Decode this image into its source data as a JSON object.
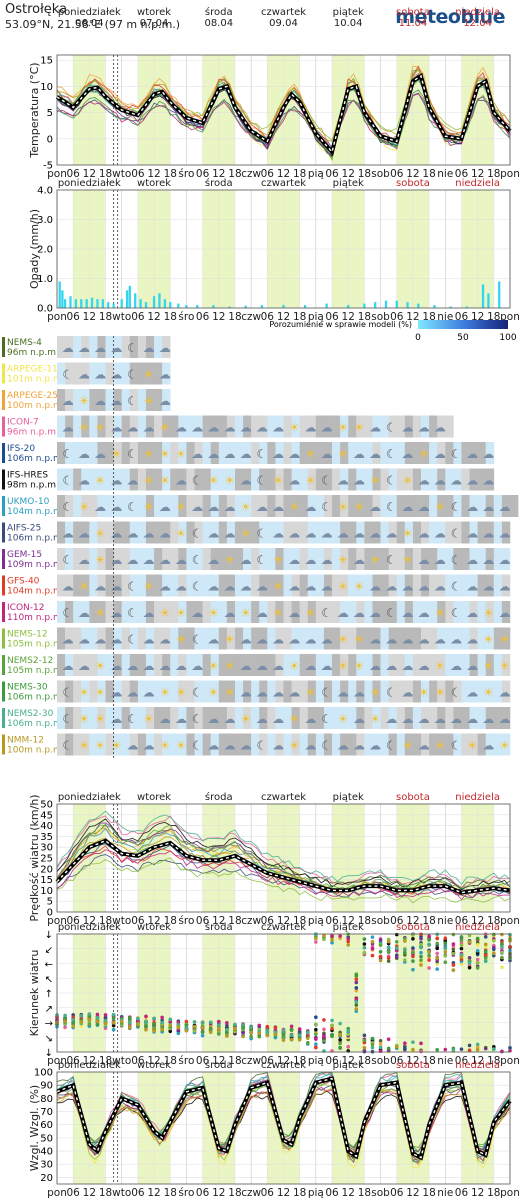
{
  "header": {
    "location": "Ostrołęka",
    "coordinates": "53.09°N, 21.58°E (97 m n.p.m.)",
    "brand": "meteoblue"
  },
  "colors": {
    "weekend": "#c0282d",
    "day_band": "#e9f5c2",
    "ensemble_mean": "#000000",
    "precip": "#33d6ee"
  },
  "days": [
    {
      "name": "poniedziałek",
      "date": "06.04",
      "weekend": false
    },
    {
      "name": "wtorek",
      "date": "07.04",
      "weekend": false
    },
    {
      "name": "środa",
      "date": "08.04",
      "weekend": false
    },
    {
      "name": "czwartek",
      "date": "09.04",
      "weekend": false
    },
    {
      "name": "piątek",
      "date": "10.04",
      "weekend": false
    },
    {
      "name": "sobota",
      "date": "11.04",
      "weekend": true
    },
    {
      "name": "niedziela",
      "date": "12.04",
      "weekend": true
    }
  ],
  "x_tick_labels": [
    "pon",
    "06",
    "12",
    "18",
    "wto",
    "06",
    "12",
    "18",
    "śro",
    "06",
    "12",
    "18",
    "czw",
    "06",
    "12",
    "18",
    "pią",
    "06",
    "12",
    "18",
    "sob",
    "06",
    "12",
    "18",
    "nie",
    "06",
    "12",
    "18",
    "pon"
  ],
  "agreement_legend": {
    "label": "Porozumienie w sprawie modeli (%)",
    "ticks": [
      "0",
      "50",
      "100"
    ]
  },
  "models": [
    {
      "name": "NEMS-4",
      "alt": "96m n.p.m",
      "color": "#4b6e23"
    },
    {
      "name": "ARPEGE-11",
      "alt": "101m n.p.m",
      "color": "#f2e54b"
    },
    {
      "name": "ARPEGE-25",
      "alt": "100m n.p.m",
      "color": "#f2a33a"
    },
    {
      "name": "ICON-7",
      "alt": "96m n.p.m",
      "color": "#e8609a"
    },
    {
      "name": "IFS-20",
      "alt": "106m n.p.m",
      "color": "#1f4c8c"
    },
    {
      "name": "IFS-HRES",
      "alt": "98m n.p.m",
      "color": "#111111"
    },
    {
      "name": "UKMO-10",
      "alt": "104m n.p.m",
      "color": "#2aa0c2"
    },
    {
      "name": "AIFS-25",
      "alt": "106m n.p.m",
      "color": "#3b4b7c"
    },
    {
      "name": "GEM-15",
      "alt": "109m n.p.m",
      "color": "#7b2f93"
    },
    {
      "name": "GFS-40",
      "alt": "104m n.p.m",
      "color": "#e03b24"
    },
    {
      "name": "ICON-12",
      "alt": "110m n.p.m",
      "color": "#c2237e"
    },
    {
      "name": "NEMS-12",
      "alt": "105m n.p.m",
      "color": "#8dbf3f"
    },
    {
      "name": "NEMS2-12",
      "alt": "105m n.p.m",
      "color": "#5aa33a"
    },
    {
      "name": "NEMS-30",
      "alt": "106m n.p.m",
      "color": "#3e9a3e"
    },
    {
      "name": "NEMS2-30",
      "alt": "106m n.p.m",
      "color": "#48b08e"
    },
    {
      "name": "NMM-12",
      "alt": "100m n.p.m",
      "color": "#b89a23"
    }
  ],
  "chart_data": [
    {
      "type": "line",
      "ylabel": "Temperatura (°C)",
      "ylim": [
        -5,
        16
      ],
      "yticks": [
        -5,
        0,
        5,
        10,
        15
      ],
      "x_hours": [
        0,
        6,
        12,
        15,
        18,
        24,
        30,
        36,
        39,
        42,
        48,
        54,
        60,
        63,
        66,
        72,
        78,
        84,
        87,
        90,
        96,
        102,
        108,
        111,
        114,
        120,
        126,
        132,
        135,
        138,
        144,
        150,
        156,
        159,
        162,
        168
      ],
      "series": [
        {
          "values": [
            8.0,
            6.0,
            9.5,
            9.8,
            8.0,
            5.5,
            4.5,
            8.5,
            9.0,
            7.0,
            4.0,
            3.0,
            9.5,
            10.0,
            6.0,
            1.5,
            -0.5,
            6.0,
            8.5,
            7.0,
            1.0,
            -2.5,
            9.5,
            10.0,
            5.0,
            0.5,
            -0.5,
            11.0,
            12.0,
            6.0,
            0.5,
            0.0,
            10.0,
            11.0,
            5.0,
            1.5
          ]
        }
      ]
    },
    {
      "type": "bar",
      "ylabel": "Opady (mm/h)",
      "ylim": [
        0,
        4
      ],
      "yticks": [
        "0.0",
        "1.0",
        "2.0",
        "3.0",
        "4.0"
      ],
      "bars": [
        {
          "h": 1,
          "v": 0.9
        },
        {
          "h": 2,
          "v": 0.6
        },
        {
          "h": 3,
          "v": 0.3
        },
        {
          "h": 5,
          "v": 0.4
        },
        {
          "h": 7,
          "v": 0.3
        },
        {
          "h": 9,
          "v": 0.3
        },
        {
          "h": 11,
          "v": 0.3
        },
        {
          "h": 13,
          "v": 0.35
        },
        {
          "h": 15,
          "v": 0.3
        },
        {
          "h": 17,
          "v": 0.3
        },
        {
          "h": 19,
          "v": 0.2
        },
        {
          "h": 21,
          "v": 0.15
        },
        {
          "h": 24,
          "v": 0.3
        },
        {
          "h": 26,
          "v": 0.6
        },
        {
          "h": 27,
          "v": 0.75
        },
        {
          "h": 29,
          "v": 0.5
        },
        {
          "h": 31,
          "v": 0.3
        },
        {
          "h": 33,
          "v": 0.2
        },
        {
          "h": 36,
          "v": 0.4
        },
        {
          "h": 38,
          "v": 0.5
        },
        {
          "h": 40,
          "v": 0.3
        },
        {
          "h": 42,
          "v": 0.2
        },
        {
          "h": 45,
          "v": 0.15
        },
        {
          "h": 48,
          "v": 0.1
        },
        {
          "h": 52,
          "v": 0.1
        },
        {
          "h": 58,
          "v": 0.1
        },
        {
          "h": 64,
          "v": 0.05
        },
        {
          "h": 70,
          "v": 0.08
        },
        {
          "h": 76,
          "v": 0.1
        },
        {
          "h": 84,
          "v": 0.1
        },
        {
          "h": 92,
          "v": 0.1
        },
        {
          "h": 100,
          "v": 0.15
        },
        {
          "h": 108,
          "v": 0.1
        },
        {
          "h": 114,
          "v": 0.15
        },
        {
          "h": 118,
          "v": 0.2
        },
        {
          "h": 122,
          "v": 0.25
        },
        {
          "h": 126,
          "v": 0.25
        },
        {
          "h": 130,
          "v": 0.2
        },
        {
          "h": 134,
          "v": 0.15
        },
        {
          "h": 140,
          "v": 0.1
        },
        {
          "h": 146,
          "v": 0.05
        },
        {
          "h": 152,
          "v": 0.05
        },
        {
          "h": 158,
          "v": 0.8
        },
        {
          "h": 160,
          "v": 0.5
        },
        {
          "h": 164,
          "v": 0.9
        }
      ]
    },
    {
      "type": "line",
      "ylabel": "Prędkość wiatru (km/h)",
      "ylim": [
        0,
        50
      ],
      "yticks": [
        0,
        5,
        10,
        15,
        20,
        25,
        30,
        35,
        40,
        45,
        50
      ],
      "x_hours": [
        0,
        6,
        12,
        18,
        24,
        30,
        36,
        42,
        48,
        54,
        60,
        66,
        72,
        78,
        84,
        90,
        96,
        102,
        108,
        114,
        120,
        126,
        132,
        138,
        144,
        150,
        156,
        162,
        168
      ],
      "series": [
        {
          "values": [
            14,
            22,
            30,
            33,
            27,
            26,
            30,
            32,
            26,
            24,
            24,
            26,
            22,
            18,
            16,
            14,
            12,
            10,
            10,
            12,
            12,
            10,
            10,
            12,
            12,
            9,
            10,
            11,
            10
          ]
        }
      ]
    },
    {
      "type": "scatter",
      "ylabel": "Kierunek wiatru",
      "ytick_glyphs": [
        "↓",
        "↙",
        "←",
        "↖",
        "↑",
        "↗",
        "→",
        "↘",
        "↓"
      ],
      "ylim": [
        0,
        360
      ],
      "x_hours": [
        0,
        6,
        12,
        18,
        24,
        30,
        36,
        42,
        48,
        54,
        60,
        66,
        72,
        78,
        84,
        90,
        96,
        102,
        108,
        114,
        120,
        126,
        132,
        138,
        144,
        150,
        156,
        162,
        168
      ],
      "series": [
        {
          "values": [
            270,
            265,
            265,
            268,
            270,
            272,
            278,
            282,
            286,
            290,
            292,
            294,
            300,
            300,
            305,
            310,
            320,
            330,
            340,
            10,
            25,
            35,
            40,
            45,
            50,
            50,
            45,
            40,
            40
          ]
        }
      ]
    },
    {
      "type": "line",
      "ylabel": "Wzgl. Wzgl. (%)",
      "ylim": [
        15,
        100
      ],
      "yticks": [
        20,
        30,
        40,
        50,
        60,
        70,
        80,
        90,
        100
      ],
      "x_hours": [
        0,
        6,
        12,
        15,
        18,
        24,
        30,
        36,
        39,
        42,
        48,
        54,
        60,
        63,
        66,
        72,
        78,
        84,
        87,
        90,
        96,
        102,
        108,
        111,
        114,
        120,
        126,
        132,
        135,
        138,
        144,
        150,
        156,
        159,
        162,
        168
      ],
      "series": [
        {
          "values": [
            85,
            90,
            45,
            40,
            55,
            80,
            75,
            55,
            50,
            62,
            85,
            88,
            42,
            40,
            60,
            88,
            92,
            48,
            45,
            65,
            92,
            95,
            40,
            36,
            62,
            90,
            92,
            38,
            35,
            60,
            90,
            92,
            40,
            37,
            62,
            78
          ]
        }
      ]
    }
  ]
}
